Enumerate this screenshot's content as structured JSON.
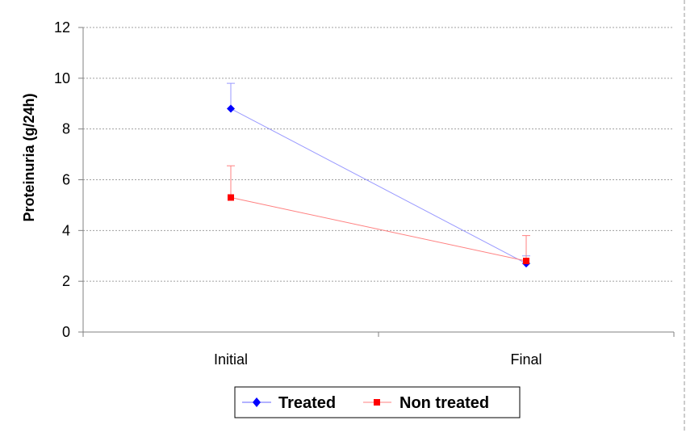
{
  "chart_data": {
    "type": "line",
    "categories": [
      "Initial",
      "Final"
    ],
    "ylabel": "Proteinuria (g/24h)",
    "xlabel": "",
    "title": "",
    "ylim": [
      0,
      12
    ],
    "yticks": [
      "0",
      "2",
      "4",
      "6",
      "8",
      "10",
      "12"
    ],
    "grid": true,
    "legend_position": "bottom",
    "series": [
      {
        "name": "Treated",
        "values": [
          8.8,
          2.7
        ],
        "error": [
          1.0,
          0.3
        ],
        "color": "#0000ff",
        "line_color": "#9999ff",
        "marker": "diamond"
      },
      {
        "name": "Non treated",
        "values": [
          5.3,
          2.8
        ],
        "error": [
          1.25,
          1.0
        ],
        "color": "#ff0000",
        "line_color": "#ff8080",
        "marker": "square"
      }
    ]
  }
}
